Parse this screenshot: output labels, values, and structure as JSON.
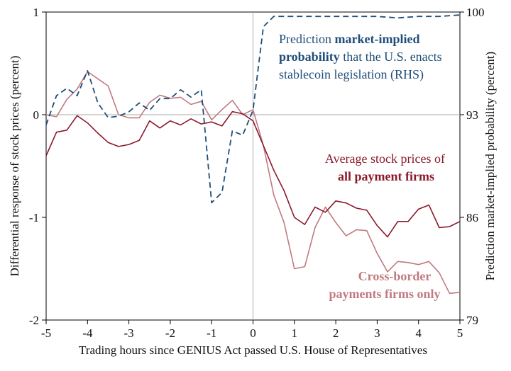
{
  "chart_data": {
    "type": "line",
    "xlabel": "Trading hours since GENIUS Act passed U.S. House of Representatives",
    "ylabel_left": "Differential response of stock prices (percent)",
    "ylabel_right": "Prediction market-implied probability (percent)",
    "xlim": [
      -5,
      5
    ],
    "ylim_left": [
      -2,
      1
    ],
    "ylim_right": [
      79,
      100
    ],
    "x_ticks": [
      -5,
      -4,
      -3,
      -2,
      -1,
      0,
      1,
      2,
      3,
      4,
      5
    ],
    "x_tick_labels": [
      "-5",
      "-4",
      "-3",
      "-2",
      "-1",
      "0",
      "1",
      "2",
      "3",
      "4",
      "5"
    ],
    "y_left_ticks": [
      -2,
      -1,
      0,
      1
    ],
    "y_left_tick_labels": [
      "-2",
      "-1",
      "0",
      "1"
    ],
    "y_right_ticks": [
      79,
      86,
      93,
      100
    ],
    "y_right_tick_labels": [
      "79",
      "86",
      "93",
      "100"
    ],
    "reference_lines": {
      "y_left": 0,
      "x": 0
    },
    "colors": {
      "prediction": "#1f4e79",
      "all_payment": "#8b1a2b",
      "cross_border": "#c07a80"
    },
    "annotations": {
      "prediction": {
        "line1_normal": "Prediction ",
        "line1_bold": "market-implied",
        "line2_bold": "probability",
        "line2_normal": " that the U.S. enacts",
        "line3_normal": "stablecoin legislation (RHS)"
      },
      "all_payment": {
        "line1_normal": "Average stock prices of",
        "line2_bold": "all payment firms"
      },
      "cross_border": {
        "line1_bold": "Cross-border",
        "line2_bold": "payments firms only"
      }
    },
    "series": [
      {
        "key": "cross_border",
        "axis": "left",
        "style": "solid",
        "x": [
          -5,
          -4.75,
          -4.5,
          -4.25,
          -4,
          -3.75,
          -3.5,
          -3.25,
          -3,
          -2.75,
          -2.5,
          -2.25,
          -2,
          -1.75,
          -1.5,
          -1.25,
          -1,
          -0.75,
          -0.5,
          -0.25,
          0,
          0.25,
          0.5,
          0.75,
          1,
          1.25,
          1.5,
          1.75,
          2,
          2.25,
          2.5,
          2.75,
          3,
          3.25,
          3.5,
          3.75,
          4,
          4.25,
          4.5,
          4.75,
          5
        ],
        "y": [
          0.0,
          -0.02,
          0.15,
          0.25,
          0.42,
          0.35,
          0.28,
          0.0,
          -0.03,
          -0.03,
          0.12,
          0.19,
          0.16,
          0.17,
          0.1,
          0.13,
          -0.05,
          0.05,
          0.14,
          0.0,
          0.05,
          -0.3,
          -0.78,
          -1.05,
          -1.5,
          -1.48,
          -1.1,
          -0.9,
          -1.05,
          -1.18,
          -1.12,
          -1.13,
          -1.35,
          -1.53,
          -1.43,
          -1.44,
          -1.46,
          -1.43,
          -1.54,
          -1.74,
          -1.73
        ]
      },
      {
        "key": "all_payment",
        "axis": "left",
        "style": "solid",
        "x": [
          -5,
          -4.75,
          -4.5,
          -4.25,
          -4,
          -3.75,
          -3.5,
          -3.25,
          -3,
          -2.75,
          -2.5,
          -2.25,
          -2,
          -1.75,
          -1.5,
          -1.25,
          -1,
          -0.75,
          -0.5,
          -0.25,
          0,
          0.25,
          0.5,
          0.75,
          1,
          1.25,
          1.5,
          1.75,
          2,
          2.25,
          2.5,
          2.75,
          3,
          3.25,
          3.5,
          3.75,
          4,
          4.25,
          4.5,
          4.75,
          5
        ],
        "y": [
          -0.4,
          -0.17,
          -0.15,
          -0.01,
          -0.08,
          -0.18,
          -0.27,
          -0.31,
          -0.29,
          -0.25,
          -0.06,
          -0.13,
          -0.06,
          -0.1,
          -0.04,
          -0.09,
          -0.07,
          -0.11,
          0.03,
          0.01,
          -0.06,
          -0.3,
          -0.54,
          -0.74,
          -1.0,
          -1.07,
          -0.9,
          -0.95,
          -0.84,
          -0.86,
          -0.91,
          -0.93,
          -1.08,
          -1.19,
          -1.04,
          -1.04,
          -0.92,
          -0.88,
          -1.1,
          -1.09,
          -1.04
        ]
      },
      {
        "key": "prediction",
        "axis": "right",
        "style": "dashed",
        "x": [
          -5,
          -4.75,
          -4.5,
          -4.25,
          -4,
          -3.75,
          -3.5,
          -3.25,
          -3,
          -2.75,
          -2.5,
          -2.25,
          -2,
          -1.75,
          -1.5,
          -1.25,
          -1,
          -0.75,
          -0.5,
          -0.25,
          0,
          0.25,
          0.5,
          0.75,
          1,
          1.5,
          2,
          2.5,
          3,
          3.5,
          4,
          4.5,
          5
        ],
        "y": [
          92.3,
          94.3,
          94.8,
          94.3,
          96.0,
          93.8,
          92.8,
          92.9,
          93.2,
          93.8,
          93.3,
          94.1,
          94.1,
          94.7,
          94.2,
          94.7,
          87.0,
          87.7,
          91.9,
          91.6,
          93.3,
          99.0,
          99.7,
          99.7,
          99.7,
          99.7,
          99.7,
          99.7,
          99.7,
          99.6,
          99.7,
          99.7,
          99.8
        ]
      }
    ]
  }
}
